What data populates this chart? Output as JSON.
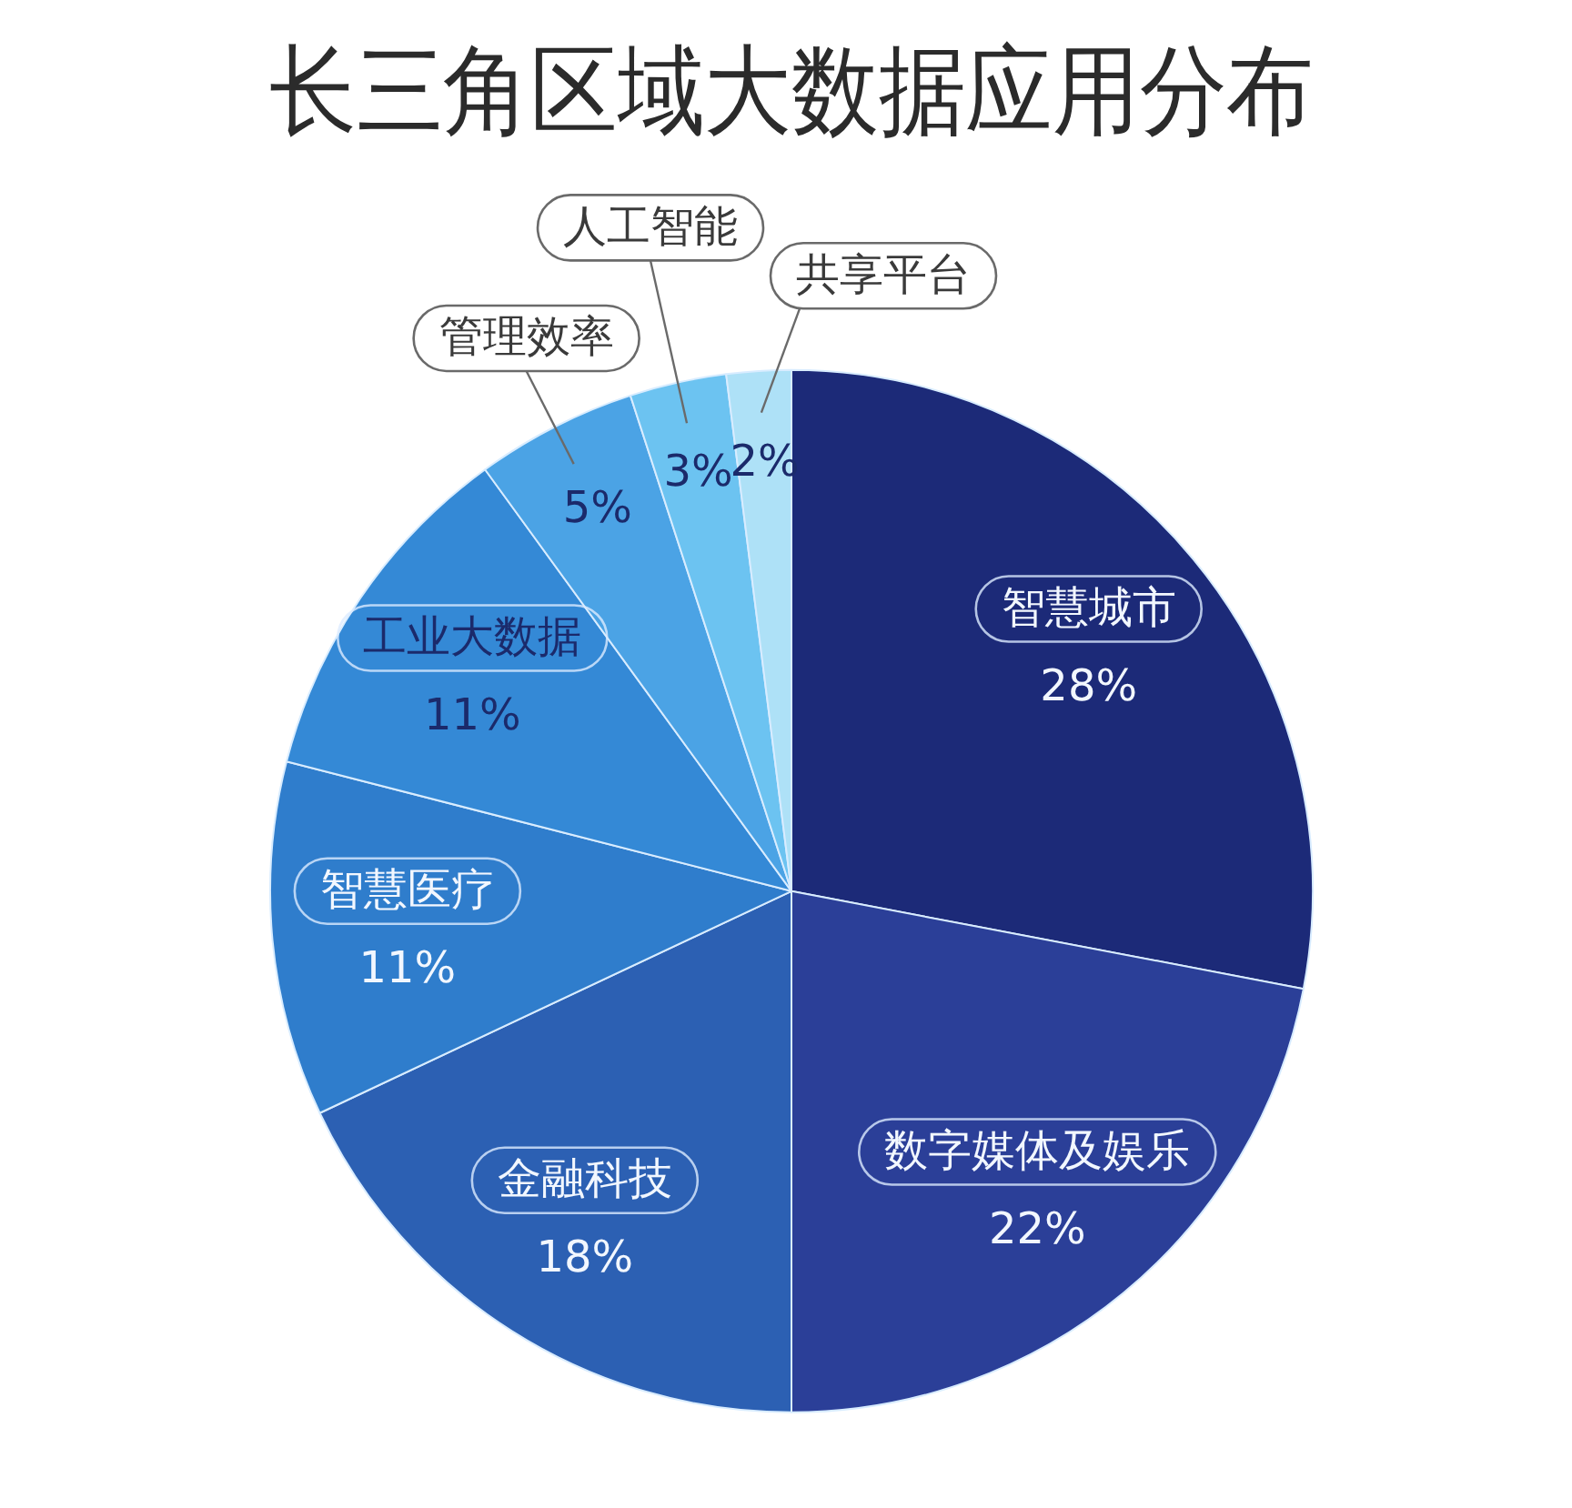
{
  "chart_data": {
    "type": "pie",
    "title": "长三角区域大数据应用分布",
    "categories": [
      "智慧城市",
      "数字媒体及娱乐",
      "金融科技",
      "智慧医疗",
      "工业大数据",
      "管理效率",
      "人工智能",
      "共享平台"
    ],
    "values": [
      28,
      22,
      18,
      11,
      11,
      5,
      3,
      2
    ],
    "value_labels": [
      "28%",
      "22%",
      "18%",
      "11%",
      "11%",
      "5%",
      "3%",
      "2%"
    ],
    "colors": [
      "#1c2a78",
      "#2b3f98",
      "#2c60b3",
      "#2f7dcc",
      "#3489d6",
      "#4ba3e5",
      "#6cc3f1",
      "#aee1f7"
    ],
    "legend": false
  }
}
